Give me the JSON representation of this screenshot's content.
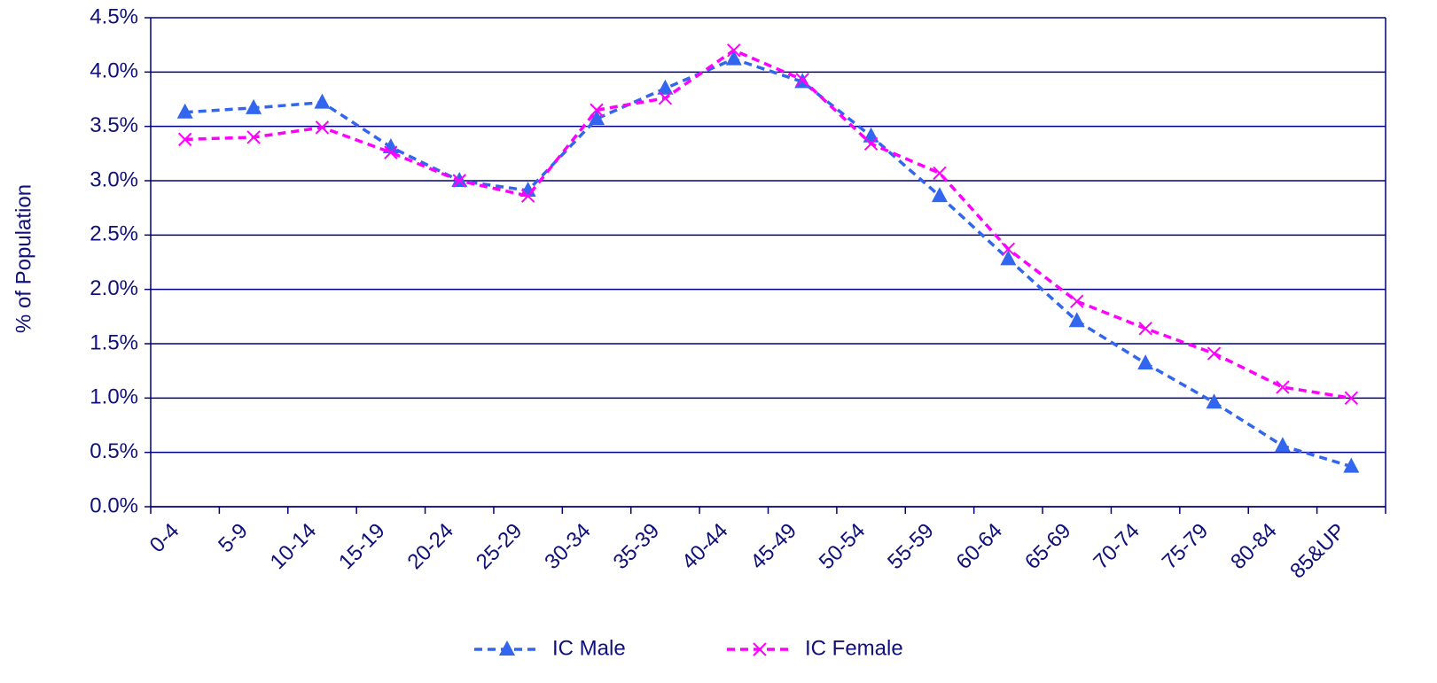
{
  "chart_data": {
    "type": "line",
    "y_label": "% of Population",
    "categories": [
      "0-4",
      "5-9",
      "10-14",
      "15-19",
      "20-24",
      "25-29",
      "30-34",
      "35-39",
      "40-44",
      "45-49",
      "50-54",
      "55-59",
      "60-64",
      "65-69",
      "70-74",
      "75-79",
      "80-84",
      "85&UP"
    ],
    "series": [
      {
        "name": "IC Male",
        "color": "#3366ee",
        "marker": "triangle",
        "values": [
          3.63,
          3.67,
          3.72,
          3.31,
          3.0,
          2.91,
          3.57,
          3.85,
          4.12,
          3.91,
          3.41,
          2.86,
          2.28,
          1.71,
          1.32,
          0.96,
          0.56,
          0.37
        ]
      },
      {
        "name": "IC Female",
        "color": "#ff00ff",
        "marker": "x",
        "values": [
          3.38,
          3.4,
          3.49,
          3.26,
          3.0,
          2.86,
          3.65,
          3.76,
          4.2,
          3.93,
          3.34,
          3.07,
          2.37,
          1.89,
          1.64,
          1.41,
          1.1,
          1.0
        ]
      }
    ],
    "ylim": [
      0,
      4.5
    ],
    "yticks": [
      {
        "value": 0,
        "label": "0.0%"
      },
      {
        "value": 0.5,
        "label": "0.5%"
      },
      {
        "value": 1,
        "label": "1.0%"
      },
      {
        "value": 1.5,
        "label": "1.5%"
      },
      {
        "value": 2,
        "label": "2.0%"
      },
      {
        "value": 2.5,
        "label": "2.5%"
      },
      {
        "value": 3,
        "label": "3.0%"
      },
      {
        "value": 3.5,
        "label": "3.5%"
      },
      {
        "value": 4,
        "label": "4.0%"
      },
      {
        "value": 4.5,
        "label": "4.5%"
      }
    ],
    "grid": true,
    "legend": "bottom"
  }
}
